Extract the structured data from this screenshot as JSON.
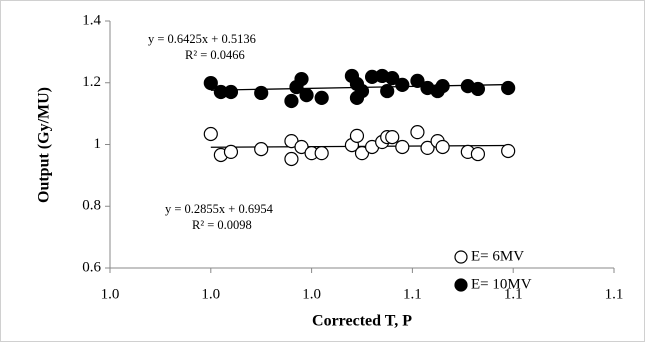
{
  "chart_data": {
    "type": "scatter",
    "x_label": "Corrected T, P",
    "y_label": "Output (Gy/MU)",
    "xlim": [
      1.0,
      1.1
    ],
    "xticks": [
      {
        "value": 1.0,
        "label": "1.0"
      },
      {
        "value": 1.02,
        "label": "1.0"
      },
      {
        "value": 1.04,
        "label": "1.0"
      },
      {
        "value": 1.06,
        "label": "1.1"
      },
      {
        "value": 1.08,
        "label": "1.1"
      },
      {
        "value": 1.1,
        "label": "1.1"
      }
    ],
    "ylim": [
      0.6,
      1.4
    ],
    "yticks": [
      {
        "value": 0.6,
        "label": "0.6"
      },
      {
        "value": 0.8,
        "label": "0.8"
      },
      1,
      {
        "value": 1.2,
        "label": "1.2"
      },
      {
        "value": 1.4,
        "label": "1.4"
      }
    ],
    "grid": false,
    "legend": "right",
    "annotations": [
      "y = 0.6425x + 0.5136",
      "R² = 0.0466",
      "y = 0.2855x + 0.6954",
      "R² = 0.0098"
    ],
    "series": [
      {
        "name": "E= 6MV",
        "color": "#ffffff",
        "trendline": true,
        "x": [
          1.02,
          1.022,
          1.024,
          1.03,
          1.036,
          1.036,
          1.038,
          1.04,
          1.042,
          1.048,
          1.049,
          1.05,
          1.052,
          1.054,
          1.055,
          1.056,
          1.058,
          1.061,
          1.063,
          1.065,
          1.066,
          1.071,
          1.073,
          1.079
        ],
        "values": [
          1.034,
          0.966,
          0.976,
          0.985,
          0.953,
          1.011,
          0.992,
          0.972,
          0.972,
          0.998,
          1.028,
          0.972,
          0.992,
          1.008,
          1.024,
          1.024,
          0.992,
          1.04,
          0.989,
          1.011,
          0.992,
          0.976,
          0.969,
          0.979
        ]
      },
      {
        "name": "E= 10MV",
        "color": "#000000",
        "trendline": true,
        "x": [
          1.02,
          1.022,
          1.024,
          1.03,
          1.036,
          1.037,
          1.038,
          1.039,
          1.042,
          1.048,
          1.049,
          1.049,
          1.05,
          1.052,
          1.054,
          1.055,
          1.056,
          1.058,
          1.061,
          1.063,
          1.065,
          1.066,
          1.071,
          1.073,
          1.079
        ],
        "values": [
          1.199,
          1.17,
          1.17,
          1.167,
          1.141,
          1.186,
          1.212,
          1.16,
          1.151,
          1.222,
          1.151,
          1.196,
          1.173,
          1.219,
          1.222,
          1.173,
          1.215,
          1.193,
          1.206,
          1.183,
          1.173,
          1.189,
          1.189,
          1.18,
          1.183
        ]
      }
    ]
  }
}
